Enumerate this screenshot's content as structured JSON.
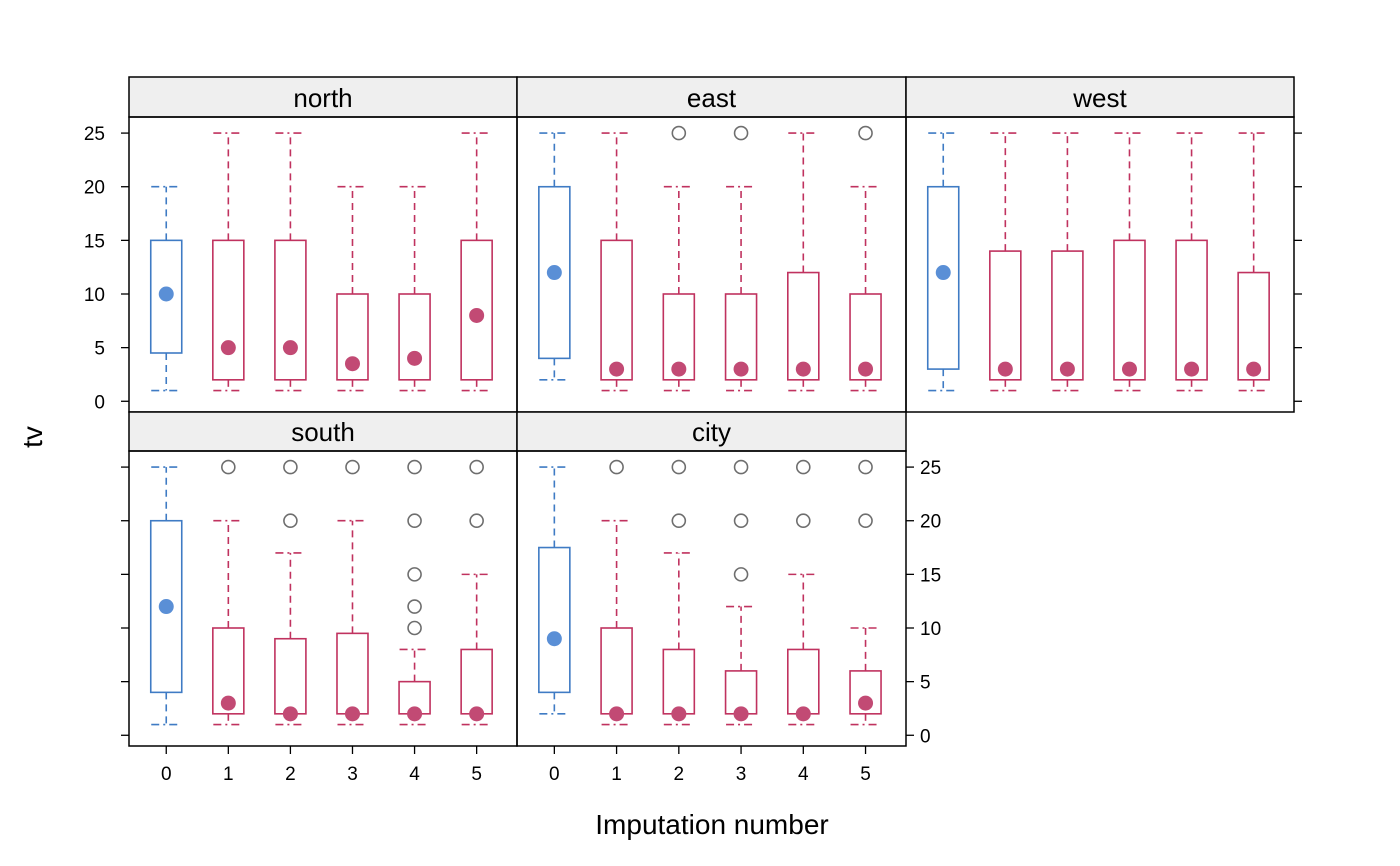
{
  "chart_data": {
    "type": "boxplot",
    "xlabel": "Imputation number",
    "ylabel": "tv",
    "ylim": [
      -1,
      26.5
    ],
    "y_ticks": [
      0,
      5,
      10,
      15,
      20,
      25
    ],
    "x_categories": [
      "0",
      "1",
      "2",
      "3",
      "4",
      "5"
    ],
    "colors": {
      "observed": "#3F7BC4",
      "observed_median": "#5A8FD6",
      "imputed": "#C0325F",
      "imputed_median": "#C24A74",
      "outlier": "#6E6E6E",
      "strip_bg": "#EFEFEF"
    },
    "panels": [
      {
        "name": "north",
        "boxes": [
          {
            "imp": 0,
            "lower": 1,
            "q1": 4.5,
            "median": 10,
            "q3": 15,
            "upper": 20,
            "outliers": []
          },
          {
            "imp": 1,
            "lower": 1,
            "q1": 2,
            "median": 5,
            "q3": 15,
            "upper": 25,
            "outliers": []
          },
          {
            "imp": 2,
            "lower": 1,
            "q1": 2,
            "median": 5,
            "q3": 15,
            "upper": 25,
            "outliers": []
          },
          {
            "imp": 3,
            "lower": 1,
            "q1": 2,
            "median": 3.5,
            "q3": 10,
            "upper": 20,
            "outliers": []
          },
          {
            "imp": 4,
            "lower": 1,
            "q1": 2,
            "median": 4,
            "q3": 10,
            "upper": 20,
            "outliers": []
          },
          {
            "imp": 5,
            "lower": 1,
            "q1": 2,
            "median": 8,
            "q3": 15,
            "upper": 25,
            "outliers": []
          }
        ]
      },
      {
        "name": "east",
        "boxes": [
          {
            "imp": 0,
            "lower": 2,
            "q1": 4,
            "median": 12,
            "q3": 20,
            "upper": 25,
            "outliers": []
          },
          {
            "imp": 1,
            "lower": 1,
            "q1": 2,
            "median": 3,
            "q3": 15,
            "upper": 25,
            "outliers": []
          },
          {
            "imp": 2,
            "lower": 1,
            "q1": 2,
            "median": 3,
            "q3": 10,
            "upper": 20,
            "outliers": [
              25
            ]
          },
          {
            "imp": 3,
            "lower": 1,
            "q1": 2,
            "median": 3,
            "q3": 10,
            "upper": 20,
            "outliers": [
              25
            ]
          },
          {
            "imp": 4,
            "lower": 1,
            "q1": 2,
            "median": 3,
            "q3": 12,
            "upper": 25,
            "outliers": []
          },
          {
            "imp": 5,
            "lower": 1,
            "q1": 2,
            "median": 3,
            "q3": 10,
            "upper": 20,
            "outliers": [
              25
            ]
          }
        ]
      },
      {
        "name": "west",
        "boxes": [
          {
            "imp": 0,
            "lower": 1,
            "q1": 3,
            "median": 12,
            "q3": 20,
            "upper": 25,
            "outliers": []
          },
          {
            "imp": 1,
            "lower": 1,
            "q1": 2,
            "median": 3,
            "q3": 14,
            "upper": 25,
            "outliers": []
          },
          {
            "imp": 2,
            "lower": 1,
            "q1": 2,
            "median": 3,
            "q3": 14,
            "upper": 25,
            "outliers": []
          },
          {
            "imp": 3,
            "lower": 1,
            "q1": 2,
            "median": 3,
            "q3": 15,
            "upper": 25,
            "outliers": []
          },
          {
            "imp": 4,
            "lower": 1,
            "q1": 2,
            "median": 3,
            "q3": 15,
            "upper": 25,
            "outliers": []
          },
          {
            "imp": 5,
            "lower": 1,
            "q1": 2,
            "median": 3,
            "q3": 12,
            "upper": 25,
            "outliers": []
          }
        ]
      },
      {
        "name": "south",
        "boxes": [
          {
            "imp": 0,
            "lower": 1,
            "q1": 4,
            "median": 12,
            "q3": 20,
            "upper": 25,
            "outliers": []
          },
          {
            "imp": 1,
            "lower": 1,
            "q1": 2,
            "median": 3,
            "q3": 10,
            "upper": 20,
            "outliers": [
              25
            ]
          },
          {
            "imp": 2,
            "lower": 1,
            "q1": 2,
            "median": 2,
            "q3": 9,
            "upper": 17,
            "outliers": [
              20,
              25
            ]
          },
          {
            "imp": 3,
            "lower": 1,
            "q1": 2,
            "median": 2,
            "q3": 9.5,
            "upper": 20,
            "outliers": [
              25
            ]
          },
          {
            "imp": 4,
            "lower": 1,
            "q1": 2,
            "median": 2,
            "q3": 5,
            "upper": 8,
            "outliers": [
              10,
              12,
              15,
              20,
              25
            ]
          },
          {
            "imp": 5,
            "lower": 1,
            "q1": 2,
            "median": 2,
            "q3": 8,
            "upper": 15,
            "outliers": [
              20,
              25
            ]
          }
        ]
      },
      {
        "name": "city",
        "boxes": [
          {
            "imp": 0,
            "lower": 2,
            "q1": 4,
            "median": 9,
            "q3": 17.5,
            "upper": 25,
            "outliers": []
          },
          {
            "imp": 1,
            "lower": 1,
            "q1": 2,
            "median": 2,
            "q3": 10,
            "upper": 20,
            "outliers": [
              25
            ]
          },
          {
            "imp": 2,
            "lower": 1,
            "q1": 2,
            "median": 2,
            "q3": 8,
            "upper": 17,
            "outliers": [
              20,
              25
            ]
          },
          {
            "imp": 3,
            "lower": 1,
            "q1": 2,
            "median": 2,
            "q3": 6,
            "upper": 12,
            "outliers": [
              15,
              20,
              25
            ]
          },
          {
            "imp": 4,
            "lower": 1,
            "q1": 2,
            "median": 2,
            "q3": 8,
            "upper": 15,
            "outliers": [
              20,
              25
            ]
          },
          {
            "imp": 5,
            "lower": 1,
            "q1": 2,
            "median": 3,
            "q3": 6,
            "upper": 10,
            "outliers": [
              20,
              25
            ]
          }
        ]
      }
    ]
  }
}
